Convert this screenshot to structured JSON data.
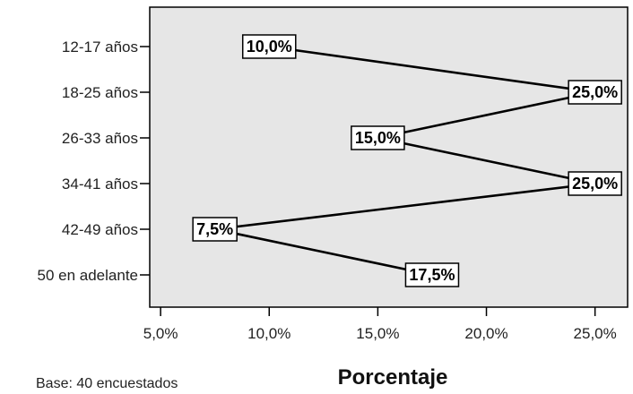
{
  "chart_data": {
    "type": "line",
    "orientation": "horizontal",
    "categories": [
      "12-17 años",
      "18-25 años",
      "26-33 años",
      "34-41 años",
      "42-49 años",
      "50 en adelante"
    ],
    "values": [
      10.0,
      25.0,
      15.0,
      25.0,
      7.5,
      17.5
    ],
    "data_labels": [
      "10,0%",
      "25,0%",
      "15,0%",
      "25,0%",
      "7,5%",
      "17,5%"
    ],
    "x_ticks": [
      5,
      10,
      15,
      20,
      25
    ],
    "x_tick_labels": [
      "5,0%",
      "10,0%",
      "15,0%",
      "20,0%",
      "25,0%"
    ],
    "xlim": [
      4.5,
      26.5
    ],
    "xlabel": "Porcentaje",
    "note": "Base: 40 encuestados",
    "plot_background": "#e6e6e6",
    "line_color": "#000000",
    "grid": false
  }
}
